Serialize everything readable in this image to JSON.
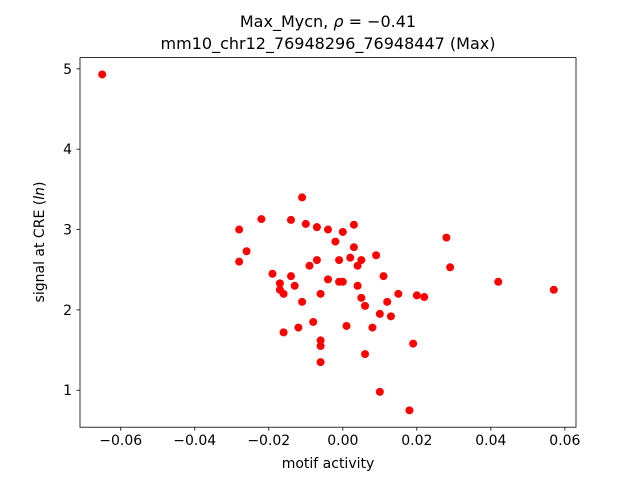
{
  "chart_data": {
    "type": "scatter",
    "title": "Max_Mycn, ρ = −0.41",
    "title_parts": {
      "prefix": "Max_Mycn, ",
      "rho": "ρ",
      "value": " = −0.41"
    },
    "subtitle": "mm10_chr12_76948296_76948447 (Max)",
    "correlation_rho": -0.41,
    "xlabel": "motif activity",
    "ylabel": "signal at CRE (ln)",
    "ylabel_parts": {
      "prefix": "signal at CRE (",
      "italic": "ln",
      "suffix": ")"
    },
    "xlim": [
      -0.071,
      0.063
    ],
    "ylim": [
      0.54,
      5.14
    ],
    "xtick_values": [
      -0.06,
      -0.04,
      -0.02,
      0.0,
      0.02,
      0.04,
      0.06
    ],
    "xtick_labels": [
      "−0.06",
      "−0.04",
      "−0.02",
      "0.00",
      "0.02",
      "0.04",
      "0.06"
    ],
    "ytick_values": [
      1,
      2,
      3,
      4,
      5
    ],
    "ytick_labels": [
      "1",
      "2",
      "3",
      "4",
      "5"
    ],
    "marker_color": "#ff0000",
    "grid": false,
    "legend": false,
    "points": [
      [
        -0.065,
        4.93
      ],
      [
        -0.028,
        3.0
      ],
      [
        -0.028,
        2.6
      ],
      [
        -0.026,
        2.73
      ],
      [
        -0.022,
        3.13
      ],
      [
        -0.019,
        2.45
      ],
      [
        -0.017,
        2.33
      ],
      [
        -0.017,
        2.25
      ],
      [
        -0.016,
        2.2
      ],
      [
        -0.016,
        1.72
      ],
      [
        -0.014,
        3.12
      ],
      [
        -0.014,
        2.42
      ],
      [
        -0.013,
        2.3
      ],
      [
        -0.012,
        1.78
      ],
      [
        -0.011,
        3.4
      ],
      [
        -0.011,
        2.1
      ],
      [
        -0.01,
        3.07
      ],
      [
        -0.009,
        2.55
      ],
      [
        -0.008,
        1.85
      ],
      [
        -0.007,
        3.03
      ],
      [
        -0.007,
        2.62
      ],
      [
        -0.006,
        2.2
      ],
      [
        -0.006,
        1.62
      ],
      [
        -0.006,
        1.55
      ],
      [
        -0.006,
        1.35
      ],
      [
        -0.004,
        3.0
      ],
      [
        -0.004,
        2.38
      ],
      [
        -0.002,
        2.85
      ],
      [
        -0.001,
        2.62
      ],
      [
        -0.001,
        2.35
      ],
      [
        0.0,
        2.97
      ],
      [
        0.0,
        2.35
      ],
      [
        0.001,
        1.8
      ],
      [
        0.002,
        2.65
      ],
      [
        0.003,
        3.06
      ],
      [
        0.003,
        2.78
      ],
      [
        0.004,
        2.55
      ],
      [
        0.004,
        2.3
      ],
      [
        0.005,
        2.62
      ],
      [
        0.005,
        2.15
      ],
      [
        0.006,
        2.05
      ],
      [
        0.006,
        1.45
      ],
      [
        0.008,
        1.78
      ],
      [
        0.009,
        2.68
      ],
      [
        0.01,
        0.98
      ],
      [
        0.01,
        1.95
      ],
      [
        0.011,
        2.42
      ],
      [
        0.012,
        2.1
      ],
      [
        0.013,
        1.92
      ],
      [
        0.015,
        2.2
      ],
      [
        0.018,
        0.75
      ],
      [
        0.019,
        1.58
      ],
      [
        0.02,
        2.18
      ],
      [
        0.022,
        2.16
      ],
      [
        0.028,
        2.9
      ],
      [
        0.029,
        2.53
      ],
      [
        0.042,
        2.35
      ],
      [
        0.057,
        2.25
      ]
    ]
  }
}
